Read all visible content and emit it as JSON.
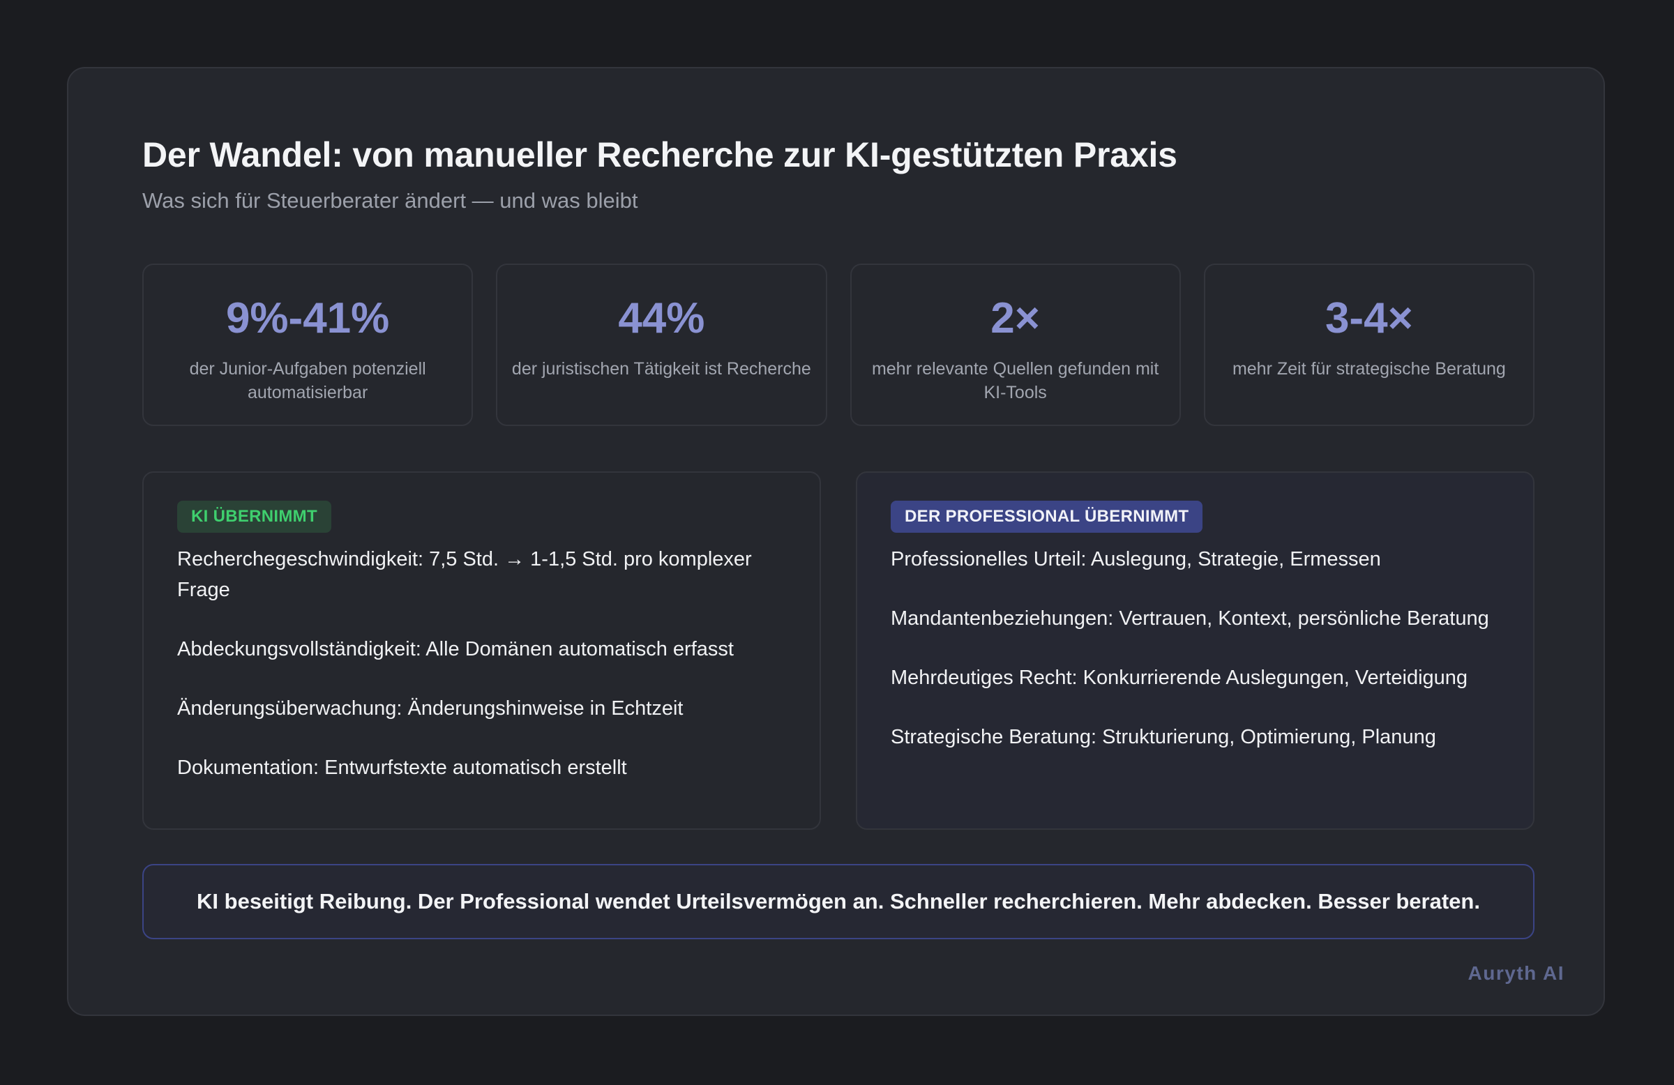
{
  "header": {
    "title": "Der Wandel: von manueller Recherche zur KI-gestützten Praxis",
    "subtitle": "Was sich für Steuerberater ändert — und was bleibt"
  },
  "stats": [
    {
      "value": "9%-41%",
      "label": "der Junior-Aufgaben potenziell automatisierbar"
    },
    {
      "value": "44%",
      "label": "der juristischen Tätigkeit ist Recherche"
    },
    {
      "value": "2×",
      "label": "mehr relevante Quellen gefunden mit KI-Tools"
    },
    {
      "value": "3-4×",
      "label": "mehr Zeit für strategische Beratung"
    }
  ],
  "panels": {
    "ai": {
      "badge": "KI ÜBERNIMMT",
      "items": [
        "Recherchegeschwindigkeit: 7,5 Std. → 1-1,5 Std. pro komplexer Frage",
        "Abdeckungsvollständigkeit: Alle Domänen automatisch erfasst",
        "Änderungsüberwachung: Änderungshinweise in Echtzeit",
        "Dokumentation: Entwurfstexte automatisch erstellt"
      ]
    },
    "pro": {
      "badge": "DER PROFESSIONAL ÜBERNIMMT",
      "items": [
        "Professionelles Urteil: Auslegung, Strategie, Ermessen",
        "Mandantenbeziehungen: Vertrauen, Kontext, persönliche Beratung",
        "Mehrdeutiges Recht: Konkurrierende Auslegungen, Verteidigung",
        "Strategische Beratung: Strukturierung, Optimierung, Planung"
      ]
    }
  },
  "banner": {
    "text": "KI beseitigt Reibung. Der Professional wendet Urteilsvermögen an. Schneller recherchieren. Mehr abdecken. Besser beraten."
  },
  "brand": {
    "name": "Auryth AI"
  },
  "colors": {
    "page_bg": "#1b1c20",
    "card_bg": "#25272d",
    "accent": "#8a92d2",
    "ai_badge_text": "#3fcf6e",
    "ai_badge_bg": "#2a4236",
    "pro_badge_bg": "#3b4485",
    "brand": "#5f6890"
  }
}
